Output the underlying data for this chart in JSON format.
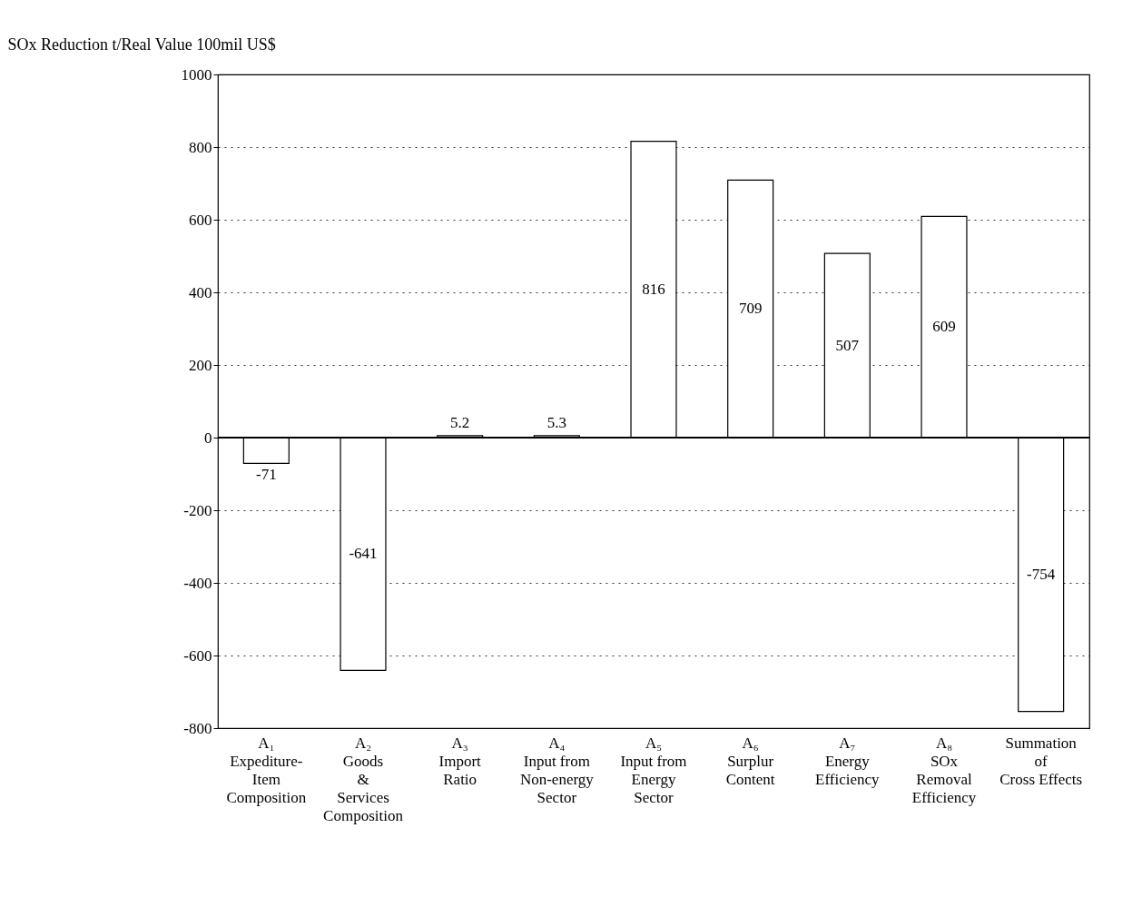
{
  "chart_data": {
    "type": "bar",
    "ylabel": "SOx Reduction t/Real Value 100mil US$",
    "categories": [
      "A₁\nExpediture-\nItem\nComposition",
      "A₂\nGoods\n&\nServices\nComposition",
      "A₃\nImport\nRatio",
      "A₄\nInput from\nNon-energy\nSector",
      "A₅\nInput from\nEnergy\nSector",
      "A₆\nSurplur\nContent",
      "A₇\nEnergy\nEfficiency",
      "A₈\nSOx\nRemoval\nEfficiency",
      "Summation\nof\nCross Effects"
    ],
    "values": [
      -71,
      -641,
      5.2,
      5.3,
      816,
      709,
      507,
      609,
      -754
    ],
    "color": "#ffffff",
    "ylim": [
      -800,
      1000
    ],
    "yticks": [
      -800,
      -600,
      -400,
      -200,
      0,
      200,
      400,
      600,
      800,
      1000
    ],
    "grid": "y",
    "data_labels": true
  }
}
